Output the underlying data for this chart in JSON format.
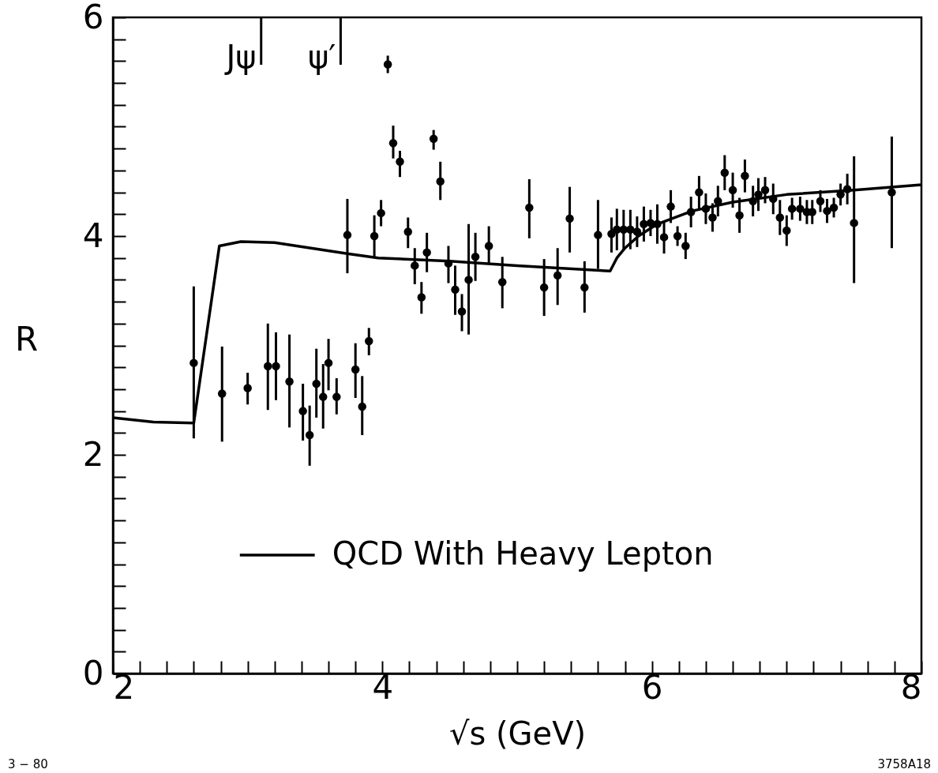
{
  "chart_data": {
    "type": "scatter",
    "xlabel": "√s (GeV)",
    "ylabel": "R",
    "xlim": [
      2,
      8
    ],
    "ylim": [
      0,
      6
    ],
    "xticks": [
      2,
      {
        "value": 2.2,
        "label": null
      },
      {
        "value": 2.4,
        "label": null
      },
      {
        "value": 2.6,
        "label": null
      },
      {
        "value": 2.8,
        "label": null
      },
      {
        "value": 3,
        "label": null
      },
      {
        "value": 3.2,
        "label": null
      },
      {
        "value": 3.4,
        "label": null
      },
      {
        "value": 3.6,
        "label": null
      },
      {
        "value": 3.8,
        "label": null
      },
      4,
      {
        "value": 4.2,
        "label": null
      },
      {
        "value": 4.4,
        "label": null
      },
      {
        "value": 4.6,
        "label": null
      },
      {
        "value": 4.8,
        "label": null
      },
      {
        "value": 5,
        "label": null
      },
      {
        "value": 5.2,
        "label": null
      },
      {
        "value": 5.4,
        "label": null
      },
      {
        "value": 5.6,
        "label": null
      },
      {
        "value": 5.8,
        "label": null
      },
      6,
      {
        "value": 6.2,
        "label": null
      },
      {
        "value": 6.4,
        "label": null
      },
      {
        "value": 6.6,
        "label": null
      },
      {
        "value": 6.8,
        "label": null
      },
      {
        "value": 7,
        "label": null
      },
      {
        "value": 7.2,
        "label": null
      },
      {
        "value": 7.4,
        "label": null
      },
      {
        "value": 7.6,
        "label": null
      },
      {
        "value": 7.8,
        "label": null
      },
      8
    ],
    "yticks": [
      0,
      {
        "value": 0.2,
        "label": null
      },
      {
        "value": 0.4,
        "label": null
      },
      {
        "value": 0.6,
        "label": null
      },
      {
        "value": 0.8,
        "label": null
      },
      {
        "value": 1,
        "label": null
      },
      {
        "value": 1.2,
        "label": null
      },
      {
        "value": 1.4,
        "label": null
      },
      {
        "value": 1.6,
        "label": null
      },
      {
        "value": 1.8,
        "label": null
      },
      2,
      {
        "value": 2.2,
        "label": null
      },
      {
        "value": 2.4,
        "label": null
      },
      {
        "value": 2.6,
        "label": null
      },
      {
        "value": 2.8,
        "label": null
      },
      {
        "value": 3,
        "label": null
      },
      {
        "value": 3.2,
        "label": null
      },
      {
        "value": 3.4,
        "label": null
      },
      {
        "value": 3.6,
        "label": null
      },
      {
        "value": 3.8,
        "label": null
      },
      4,
      {
        "value": 4.2,
        "label": null
      },
      {
        "value": 4.4,
        "label": null
      },
      {
        "value": 4.6,
        "label": null
      },
      {
        "value": 4.8,
        "label": null
      },
      {
        "value": 5,
        "label": null
      },
      {
        "value": 5.2,
        "label": null
      },
      {
        "value": 5.4,
        "label": null
      },
      {
        "value": 5.6,
        "label": null
      },
      {
        "value": 5.8,
        "label": null
      },
      6
    ],
    "grid": false,
    "legend": "bottom",
    "line_style": "solid",
    "series": [
      {
        "type": "scatter",
        "marker": "circle",
        "color": "#000000",
        "x": [
          2.6,
          2.81,
          3.0,
          3.15,
          3.21,
          3.31,
          3.41,
          3.46,
          3.51,
          3.56,
          3.6,
          3.66,
          3.74,
          3.8,
          3.85,
          3.9,
          3.94,
          3.99,
          4.04,
          4.08,
          4.13,
          4.19,
          4.24,
          4.29,
          4.33,
          4.38,
          4.43,
          4.49,
          4.54,
          4.59,
          4.64,
          4.69,
          4.79,
          4.89,
          5.09,
          5.2,
          5.3,
          5.39,
          5.5,
          5.6,
          5.7,
          5.74,
          5.79,
          5.84,
          5.89,
          5.94,
          5.99,
          6.04,
          6.09,
          6.14,
          6.19,
          6.25,
          6.29,
          6.35,
          6.4,
          6.45,
          6.49,
          6.54,
          6.6,
          6.65,
          6.69,
          6.75,
          6.79,
          6.84,
          6.9,
          6.95,
          7.0,
          7.04,
          7.1,
          7.15,
          7.19,
          7.25,
          7.3,
          7.35,
          7.4,
          7.45,
          7.5,
          7.78
        ],
        "values": [
          2.84,
          2.56,
          2.61,
          2.81,
          2.81,
          2.67,
          2.4,
          2.18,
          2.65,
          2.53,
          2.84,
          2.53,
          4.01,
          2.78,
          2.44,
          3.04,
          4.0,
          4.21,
          5.57,
          4.85,
          4.68,
          4.04,
          3.73,
          3.44,
          3.85,
          4.89,
          4.5,
          3.75,
          3.51,
          3.31,
          3.6,
          3.81,
          3.91,
          3.58,
          4.26,
          3.53,
          3.64,
          4.16,
          3.53,
          4.01,
          4.02,
          4.06,
          4.06,
          4.06,
          4.04,
          4.11,
          4.12,
          4.11,
          3.99,
          4.27,
          4.0,
          3.91,
          4.22,
          4.4,
          4.25,
          4.17,
          4.32,
          4.58,
          4.42,
          4.19,
          4.55,
          4.32,
          4.38,
          4.42,
          4.34,
          4.17,
          4.05,
          4.25,
          4.25,
          4.22,
          4.22,
          4.32,
          4.23,
          4.26,
          4.38,
          4.43,
          4.12,
          4.4
        ],
        "errors": [
          [
            2.15,
            3.54
          ],
          [
            2.12,
            2.99
          ],
          [
            2.46,
            2.75
          ],
          [
            2.41,
            3.2
          ],
          [
            2.5,
            3.12
          ],
          [
            2.25,
            3.1
          ],
          [
            2.13,
            2.65
          ],
          [
            1.9,
            2.45
          ],
          [
            2.34,
            2.97
          ],
          [
            2.24,
            2.83
          ],
          [
            2.59,
            3.06
          ],
          [
            2.37,
            2.7
          ],
          [
            3.66,
            4.34
          ],
          [
            2.52,
            3.02
          ],
          [
            2.18,
            2.72
          ],
          [
            2.91,
            3.16
          ],
          [
            3.81,
            4.19
          ],
          [
            4.09,
            4.33
          ],
          [
            5.49,
            5.65
          ],
          [
            4.71,
            5.01
          ],
          [
            4.54,
            4.78
          ],
          [
            3.89,
            4.17
          ],
          [
            3.56,
            3.89
          ],
          [
            3.29,
            3.58
          ],
          [
            3.67,
            4.03
          ],
          [
            4.79,
            4.97
          ],
          [
            4.33,
            4.68
          ],
          [
            3.57,
            3.91
          ],
          [
            3.28,
            3.73
          ],
          [
            3.13,
            3.47
          ],
          [
            3.1,
            4.11
          ],
          [
            3.59,
            4.03
          ],
          [
            3.74,
            4.09
          ],
          [
            3.34,
            3.81
          ],
          [
            3.98,
            4.52
          ],
          [
            3.27,
            3.79
          ],
          [
            3.37,
            3.89
          ],
          [
            3.85,
            4.45
          ],
          [
            3.3,
            3.77
          ],
          [
            3.7,
            4.33
          ],
          [
            3.85,
            4.17
          ],
          0.19,
          0.18,
          0.18,
          0.14,
          0.16,
          0.12,
          0.18,
          0.15,
          0.15,
          0.09,
          0.12,
          0.14,
          0.15,
          0.14,
          0.13,
          0.14,
          0.16,
          0.16,
          0.16,
          0.15,
          0.14,
          0.15,
          0.12,
          0.14,
          0.16,
          0.14,
          0.1,
          0.11,
          0.11,
          0.11,
          0.1,
          0.11,
          0.09,
          0.1,
          0.14,
          [
            3.57,
            4.73
          ],
          [
            3.89,
            4.91
          ]
        ]
      },
      {
        "type": "line",
        "name": "QCD With Heavy Lepton",
        "color": "#000000",
        "x": [
          2,
          2.3,
          2.6,
          2.79,
          2.95,
          3.2,
          3.74,
          3.97,
          4.5,
          5.0,
          5.69,
          5.74,
          5.8,
          5.9,
          6.04,
          6.3,
          6.6,
          7.0,
          7.5,
          8
        ],
        "values": [
          2.34,
          2.3,
          2.29,
          3.91,
          3.95,
          3.94,
          3.84,
          3.8,
          3.77,
          3.73,
          3.68,
          3.8,
          3.89,
          4.0,
          4.11,
          4.23,
          4.31,
          4.38,
          4.42,
          4.47
        ]
      }
    ],
    "ref_lines": [
      {
        "axis": "x",
        "value": 3.1,
        "label": "Jψ"
      },
      {
        "axis": "x",
        "value": 3.69,
        "label": "ψ′"
      }
    ],
    "annotations": [
      "3 − 80",
      "3758A18"
    ]
  }
}
